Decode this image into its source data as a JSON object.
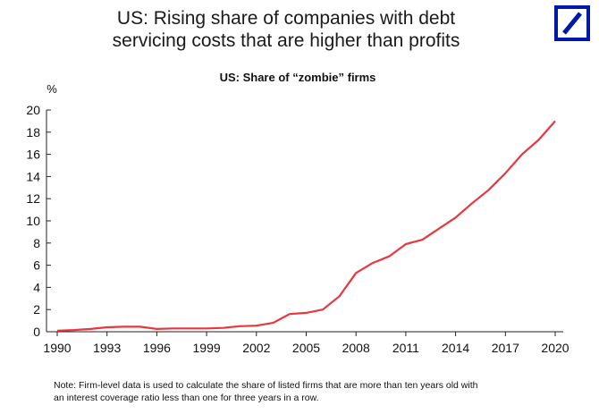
{
  "header": {
    "title_line1": "US: Rising share of companies with debt",
    "title_line2": "servicing costs that are higher than profits"
  },
  "logo": {
    "name": "deutsche-bank-logo",
    "colors": {
      "brand": "#0018a8"
    }
  },
  "chart_data": {
    "type": "line",
    "title": "US: Share of “zombie” firms",
    "xlabel": "",
    "ylabel": "%",
    "xlim": [
      1990,
      2020
    ],
    "ylim": [
      0,
      20
    ],
    "grid": false,
    "x_ticks": [
      1990,
      1993,
      1996,
      1999,
      2002,
      2005,
      2008,
      2011,
      2014,
      2017,
      2020
    ],
    "y_ticks": [
      0,
      2,
      4,
      6,
      8,
      10,
      12,
      14,
      16,
      18,
      20
    ],
    "series": [
      {
        "color": "#e8373e",
        "x": [
          1990,
          1991,
          1992,
          1993,
          1994,
          1995,
          1996,
          1997,
          1998,
          1999,
          2000,
          2001,
          2002,
          2003,
          2004,
          2005,
          2006,
          2007,
          2008,
          2009,
          2010,
          2011,
          2012,
          2013,
          2014,
          2015,
          2016,
          2017,
          2018,
          2019,
          2020
        ],
        "values": [
          0.1,
          0.15,
          0.25,
          0.4,
          0.45,
          0.45,
          0.25,
          0.3,
          0.3,
          0.3,
          0.35,
          0.5,
          0.55,
          0.8,
          1.6,
          1.7,
          2.0,
          3.2,
          5.3,
          6.2,
          6.8,
          7.9,
          8.3,
          9.3,
          10.3,
          11.6,
          12.8,
          14.3,
          16.0,
          17.3,
          19.0
        ]
      }
    ]
  },
  "footer": {
    "note_line1": "Note: Firm-level data is used to calculate the share of listed firms that are more than ten years old with",
    "note_line2": "an interest coverage ratio less than one for three years in a row."
  }
}
